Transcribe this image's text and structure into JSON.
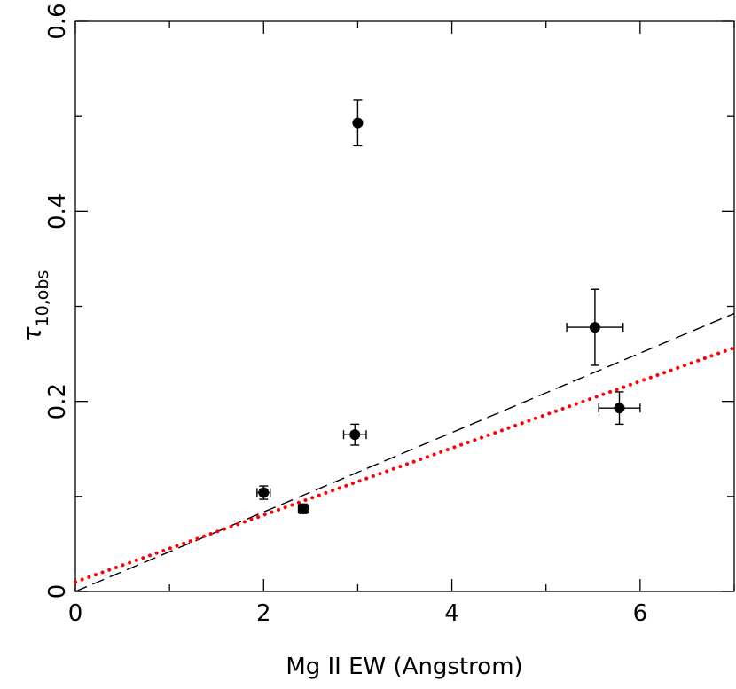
{
  "chart_data": {
    "type": "scatter",
    "xlabel": "Mg II EW (Angstrom)",
    "ylabel": {
      "symbol": "τ",
      "subscript": "10,obs"
    },
    "xlim": [
      0,
      7
    ],
    "ylim": [
      0,
      0.6
    ],
    "x_ticks": [
      "0",
      "2",
      "4",
      "6"
    ],
    "y_ticks": [
      "0",
      "0.2",
      "0.4",
      "0.6"
    ],
    "grid": false,
    "points": [
      {
        "x": 2.0,
        "y": 0.104,
        "xerr": 0.07,
        "yerr": 0.007
      },
      {
        "x": 2.42,
        "y": 0.087,
        "xerr": 0.05,
        "yerr": 0.005
      },
      {
        "x": 2.97,
        "y": 0.165,
        "xerr": 0.12,
        "yerr": 0.011
      },
      {
        "x": 3.0,
        "y": 0.493,
        "xerr": 0.0,
        "yerr": 0.024
      },
      {
        "x": 5.52,
        "y": 0.278,
        "xerr": 0.3,
        "yerr": 0.04
      },
      {
        "x": 5.78,
        "y": 0.193,
        "xerr": 0.22,
        "yerr": 0.017
      }
    ],
    "fit_lines": [
      {
        "style": "dashed",
        "color": "#000000",
        "slope": 0.0418,
        "intercept": 0.0
      },
      {
        "style": "dotted",
        "color": "#ff0000",
        "slope": 0.0352,
        "intercept": 0.01
      }
    ]
  }
}
